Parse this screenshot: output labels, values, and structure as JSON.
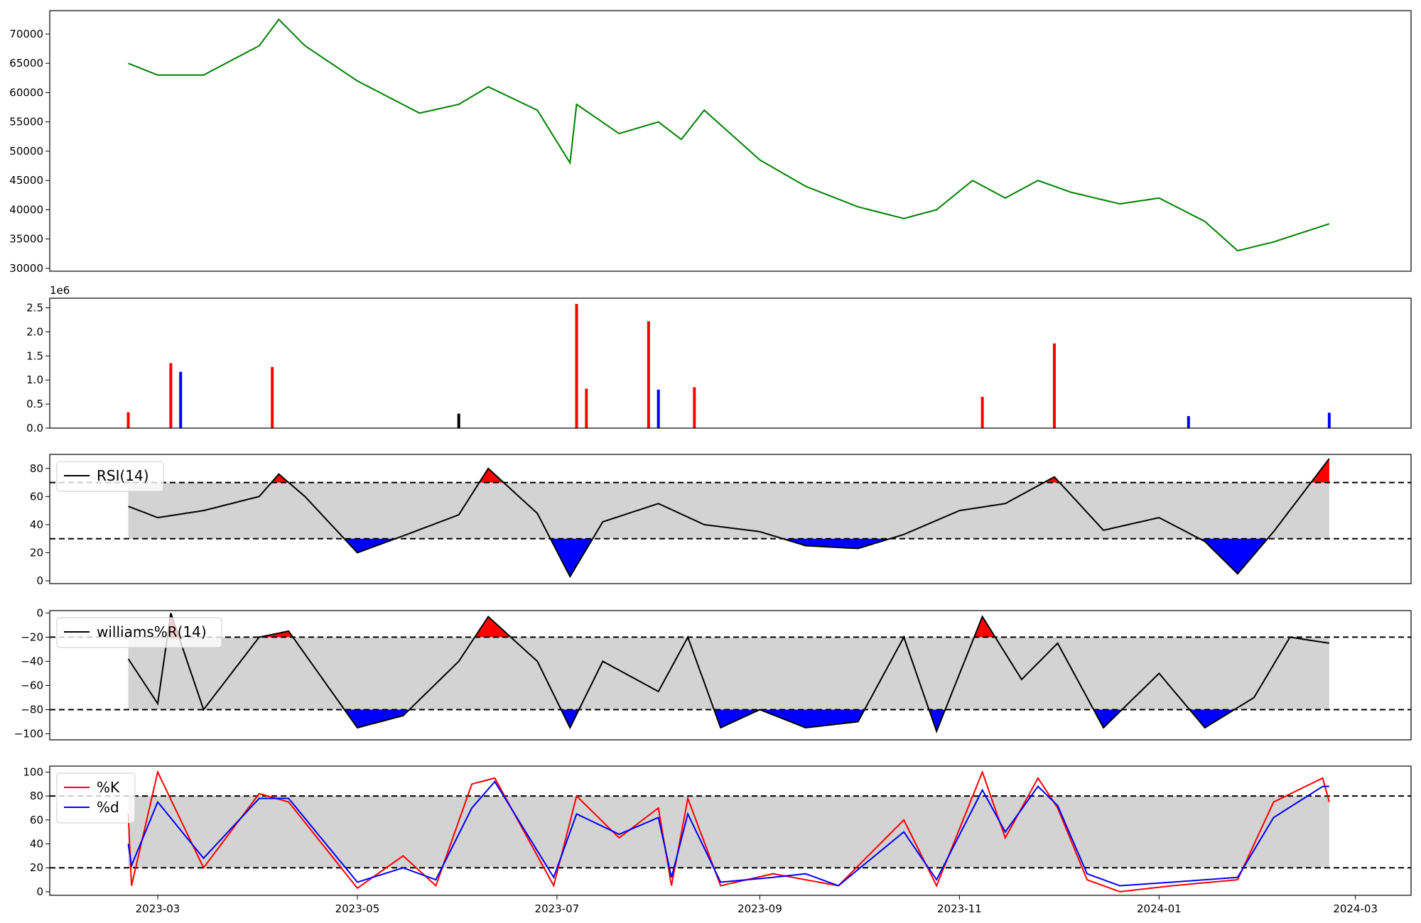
{
  "chart_data": [
    {
      "type": "line",
      "panel": "price",
      "color": "#008000",
      "ylim": [
        29500,
        74000
      ],
      "yticks": [
        30000,
        35000,
        40000,
        45000,
        50000,
        55000,
        60000,
        65000,
        70000
      ],
      "ytick_labels": [
        "30000",
        "35000",
        "40000",
        "45000",
        "50000",
        "55000",
        "60000",
        "65000",
        "70000"
      ],
      "x": [
        "2023-02-20",
        "2023-03-01",
        "2023-03-15",
        "2023-04-01",
        "2023-04-07",
        "2023-04-15",
        "2023-05-01",
        "2023-05-20",
        "2023-06-01",
        "2023-06-10",
        "2023-06-25",
        "2023-07-05",
        "2023-07-07",
        "2023-07-20",
        "2023-08-01",
        "2023-08-08",
        "2023-08-15",
        "2023-09-01",
        "2023-09-15",
        "2023-10-01",
        "2023-10-15",
        "2023-10-25",
        "2023-11-05",
        "2023-11-15",
        "2023-11-25",
        "2023-12-05",
        "2023-12-20",
        "2024-01-01",
        "2024-01-15",
        "2024-01-25",
        "2024-02-05",
        "2024-02-22"
      ],
      "values": [
        65000,
        63000,
        63000,
        68000,
        72500,
        68000,
        62000,
        56500,
        58000,
        61000,
        57000,
        48000,
        58000,
        53000,
        55000,
        52000,
        57000,
        48500,
        44000,
        40500,
        38500,
        40000,
        45000,
        42000,
        45000,
        43000,
        41000,
        42000,
        38000,
        33000,
        34500,
        37600
      ]
    },
    {
      "type": "bar",
      "panel": "volume",
      "offset_label": "1e6",
      "ylim": [
        0,
        2.7
      ],
      "yticks": [
        0.0,
        0.5,
        1.0,
        1.5,
        2.0,
        2.5
      ],
      "ytick_labels": [
        "0.0",
        "0.5",
        "1.0",
        "1.5",
        "2.0",
        "2.5"
      ],
      "up_color": "#ff0000",
      "down_color": "#0000ff",
      "flat_color": "#000000",
      "x": [
        "2023-02-20",
        "2023-03-05",
        "2023-03-08",
        "2023-04-05",
        "2023-06-01",
        "2023-07-07",
        "2023-07-10",
        "2023-07-29",
        "2023-08-01",
        "2023-08-12",
        "2023-11-08",
        "2023-11-30",
        "2024-01-10",
        "2024-02-22"
      ],
      "values": [
        0.33,
        1.35,
        1.17,
        1.27,
        0.3,
        2.58,
        0.82,
        2.22,
        0.8,
        0.85,
        0.65,
        1.76,
        0.25,
        0.32
      ],
      "colors": [
        "r",
        "r",
        "b",
        "r",
        "k",
        "r",
        "r",
        "r",
        "b",
        "r",
        "r",
        "r",
        "b",
        "b"
      ]
    },
    {
      "type": "line",
      "panel": "rsi",
      "series": [
        {
          "name": "RSI(14)",
          "color": "#000000"
        }
      ],
      "thresholds": [
        70,
        30
      ],
      "ylim": [
        -2,
        90
      ],
      "yticks": [
        0,
        20,
        40,
        60,
        80
      ],
      "ytick_labels": [
        "0",
        "20",
        "40",
        "60",
        "80"
      ],
      "x": [
        "2023-02-20",
        "2023-03-01",
        "2023-03-15",
        "2023-04-01",
        "2023-04-07",
        "2023-04-15",
        "2023-05-01",
        "2023-05-15",
        "2023-06-01",
        "2023-06-10",
        "2023-06-25",
        "2023-07-05",
        "2023-07-15",
        "2023-08-01",
        "2023-08-15",
        "2023-09-01",
        "2023-09-15",
        "2023-10-01",
        "2023-10-15",
        "2023-11-01",
        "2023-11-15",
        "2023-11-30",
        "2023-12-15",
        "2024-01-01",
        "2024-01-15",
        "2024-01-25",
        "2024-02-05",
        "2024-02-22"
      ],
      "values": [
        53,
        45,
        50,
        60,
        76,
        60,
        20,
        32,
        47,
        80,
        48,
        3,
        42,
        55,
        40,
        35,
        25,
        23,
        33,
        50,
        55,
        74,
        36,
        45,
        28,
        5,
        35,
        87
      ]
    },
    {
      "type": "line",
      "panel": "williams",
      "series": [
        {
          "name": "williams%R(14)",
          "color": "#000000"
        }
      ],
      "thresholds": [
        -20,
        -80
      ],
      "ylim": [
        -105,
        2
      ],
      "yticks": [
        -100,
        -80,
        -60,
        -40,
        -20,
        0
      ],
      "ytick_labels": [
        "−100",
        "−80",
        "−60",
        "−40",
        "−20",
        "0"
      ],
      "x": [
        "2023-02-20",
        "2023-03-01",
        "2023-03-05",
        "2023-03-15",
        "2023-04-01",
        "2023-04-10",
        "2023-05-01",
        "2023-05-15",
        "2023-06-01",
        "2023-06-10",
        "2023-06-25",
        "2023-07-05",
        "2023-07-15",
        "2023-08-01",
        "2023-08-10",
        "2023-08-20",
        "2023-09-01",
        "2023-09-15",
        "2023-10-01",
        "2023-10-15",
        "2023-10-25",
        "2023-11-08",
        "2023-11-20",
        "2023-12-01",
        "2023-12-15",
        "2024-01-01",
        "2024-01-15",
        "2024-01-30",
        "2024-02-10",
        "2024-02-22"
      ],
      "values": [
        -38,
        -75,
        0,
        -80,
        -20,
        -15,
        -95,
        -85,
        -40,
        -3,
        -40,
        -95,
        -40,
        -65,
        -20,
        -95,
        -80,
        -95,
        -90,
        -20,
        -98,
        -3,
        -55,
        -25,
        -95,
        -50,
        -95,
        -70,
        -20,
        -25
      ]
    },
    {
      "type": "line",
      "panel": "stochastic",
      "series": [
        {
          "name": "%K",
          "color": "#ff0000",
          "values": [
            65,
            5,
            100,
            20,
            82,
            75,
            3,
            30,
            5,
            90,
            95,
            5,
            80,
            45,
            70,
            5,
            78,
            5,
            15,
            10,
            5,
            60,
            5,
            100,
            45,
            95,
            70,
            10,
            0,
            5,
            10,
            75,
            95,
            75
          ]
        },
        {
          "name": "%d",
          "color": "#0000ff",
          "values": [
            40,
            22,
            75,
            28,
            78,
            78,
            8,
            20,
            10,
            70,
            92,
            12,
            65,
            48,
            62,
            12,
            65,
            8,
            12,
            15,
            5,
            50,
            10,
            85,
            50,
            88,
            72,
            15,
            5,
            8,
            12,
            62,
            88,
            88
          ]
        }
      ],
      "thresholds": [
        80,
        20
      ],
      "ylim": [
        -3,
        105
      ],
      "yticks": [
        0,
        20,
        40,
        60,
        80,
        100
      ],
      "ytick_labels": [
        "0",
        "20",
        "40",
        "60",
        "80",
        "100"
      ],
      "x": [
        "2023-02-20",
        "2023-02-21",
        "2023-03-01",
        "2023-03-15",
        "2023-04-01",
        "2023-04-10",
        "2023-05-01",
        "2023-05-15",
        "2023-05-25",
        "2023-06-05",
        "2023-06-12",
        "2023-06-30",
        "2023-07-07",
        "2023-07-20",
        "2023-08-01",
        "2023-08-05",
        "2023-08-10",
        "2023-08-20",
        "2023-09-05",
        "2023-09-15",
        "2023-09-25",
        "2023-10-15",
        "2023-10-25",
        "2023-11-08",
        "2023-11-15",
        "2023-11-25",
        "2023-12-01",
        "2023-12-10",
        "2023-12-20",
        "2024-01-05",
        "2024-01-25",
        "2024-02-05",
        "2024-02-20",
        "2024-02-22"
      ]
    }
  ],
  "x_axis": {
    "range": [
      "2023-01-27",
      "2024-03-18"
    ],
    "ticks": [
      "2023-03-01",
      "2023-05-01",
      "2023-07-01",
      "2023-09-01",
      "2023-11-01",
      "2024-01-01",
      "2024-03-01"
    ],
    "tick_labels": [
      "2023-03",
      "2023-05",
      "2023-07",
      "2023-09",
      "2023-11",
      "2024-01",
      "2024-03"
    ]
  },
  "band_color": "#d3d3d3",
  "overbought_fill": "#ff0000",
  "oversold_fill": "#0000ff"
}
